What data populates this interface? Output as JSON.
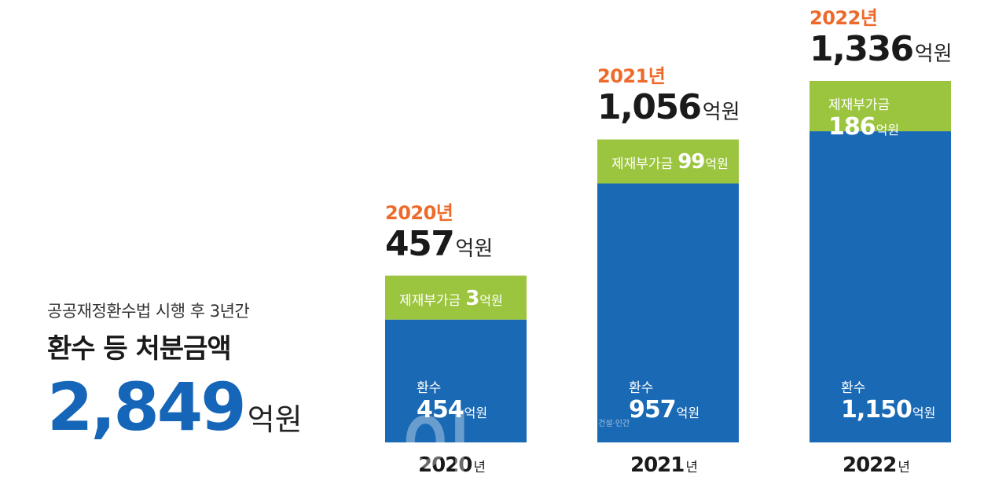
{
  "summary": {
    "subtitle": "공공재정환수법 시행 후 3년간",
    "title": "환수 등 처분금액",
    "total_value": "2,849",
    "total_unit": "억원"
  },
  "watermark": {
    "text": "이",
    "tagline": "·건설·인간"
  },
  "chart_data": {
    "type": "bar",
    "stacked": true,
    "categories": [
      "2020",
      "2021",
      "2022"
    ],
    "category_unit": "년",
    "year_labels": [
      "2020년",
      "2021년",
      "2022년"
    ],
    "totals": [
      457,
      1056,
      1336
    ],
    "totals_text": [
      "457",
      "1,056",
      "1,336"
    ],
    "unit": "억원",
    "series": [
      {
        "name": "환수",
        "values": [
          454,
          957,
          1150
        ],
        "values_text": [
          "454",
          "957",
          "1,150"
        ],
        "color": "#1a69b4"
      },
      {
        "name": "제재부가금",
        "values": [
          3,
          99,
          186
        ],
        "values_text": [
          "3",
          "99",
          "186"
        ],
        "color": "#9cc53f"
      }
    ]
  }
}
